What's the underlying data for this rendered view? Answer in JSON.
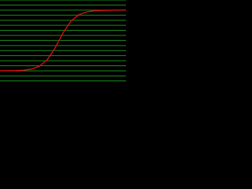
{
  "chart_data": {
    "type": "line",
    "x": [
      0,
      10,
      20,
      30,
      40,
      50,
      60,
      70,
      80,
      90,
      100,
      110,
      120,
      130,
      140,
      150,
      160
    ],
    "series": [
      {
        "color": "#e01010",
        "values": [
          0.01,
          0.02,
          0.05,
          0.13,
          0.35,
          0.91,
          2.19,
          4.53,
          7.47,
          9.81,
          11.09,
          11.65,
          11.87,
          11.95,
          11.98,
          11.99,
          12.0
        ]
      }
    ],
    "xlim": [
      0,
      160
    ],
    "ylim": [
      -2.5,
      14
    ],
    "yticks": [
      -2,
      -1,
      0,
      1,
      2,
      3,
      4,
      5,
      6,
      7,
      8,
      9,
      10,
      11,
      12,
      13,
      14
    ],
    "grid": true,
    "grid_color": "#1c8c1c",
    "background": "#000000"
  }
}
